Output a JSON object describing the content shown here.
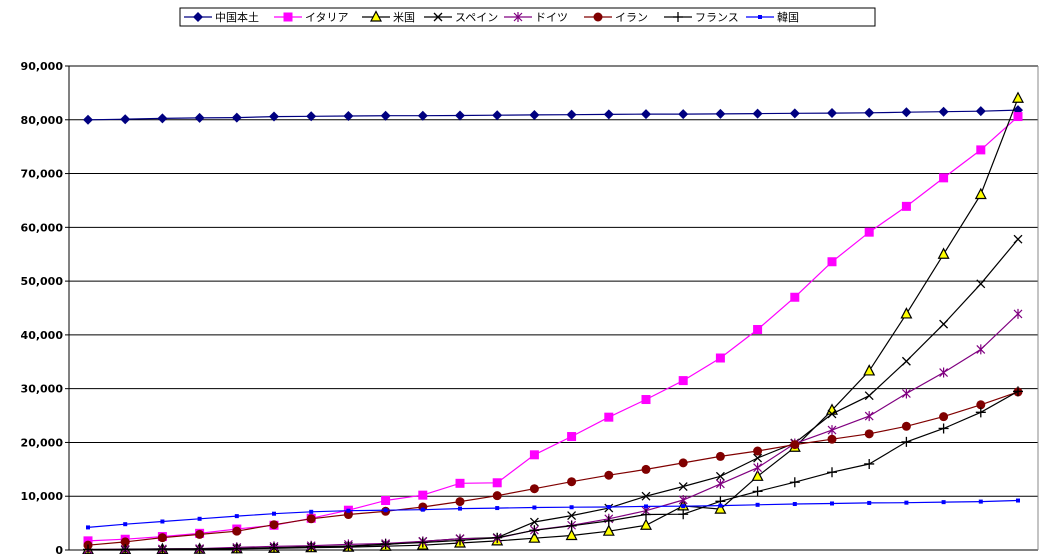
{
  "chart_data": {
    "type": "line",
    "ylim": [
      0,
      90000
    ],
    "yticks": [
      0,
      10000,
      20000,
      30000,
      40000,
      50000,
      60000,
      70000,
      80000,
      90000
    ],
    "ytick_labels": [
      "0",
      "10,000",
      "20,000",
      "30,000",
      "40,000",
      "50,000",
      "60,000",
      "70,000",
      "80,000",
      "90,000"
    ],
    "grid": true,
    "legend_position": "top",
    "series": [
      {
        "name": "中国本土",
        "color": "#000080",
        "marker": "diamond",
        "values": [
          80000,
          80100,
          80250,
          80350,
          80400,
          80600,
          80650,
          80700,
          80750,
          80750,
          80800,
          80850,
          80900,
          80950,
          81000,
          81050,
          81050,
          81100,
          81150,
          81200,
          81250,
          81300,
          81400,
          81500,
          81600,
          81800
        ]
      },
      {
        "name": "イタリア",
        "color": "#ff00ff",
        "marker": "square",
        "values": [
          1700,
          2000,
          2500,
          3100,
          3900,
          4600,
          5900,
          7400,
          9200,
          10200,
          12400,
          12500,
          17700,
          21100,
          24700,
          27980,
          31500,
          35700,
          41000,
          47000,
          53600,
          59100,
          63900,
          69200,
          74400,
          80600
        ]
      },
      {
        "name": "米国",
        "color": "#000000",
        "marker": "triangle",
        "values": [
          60,
          100,
          120,
          150,
          220,
          320,
          430,
          540,
          700,
          900,
          1300,
          1700,
          2200,
          2700,
          3500,
          4600,
          8200,
          7600,
          13700,
          19100,
          26000,
          33300,
          43900,
          55000,
          66100,
          84000
        ]
      },
      {
        "name": "スペイン",
        "color": "#000000",
        "marker": "x",
        "values": [
          0,
          0,
          50,
          100,
          250,
          400,
          500,
          680,
          1000,
          1600,
          2100,
          2300,
          5200,
          6400,
          7800,
          10000,
          11800,
          13700,
          17100,
          19900,
          25300,
          28700,
          35100,
          42000,
          49500,
          57800
        ]
      },
      {
        "name": "ドイツ",
        "color": "#800080",
        "marker": "asterisk",
        "values": [
          100,
          150,
          200,
          260,
          480,
          670,
          800,
          1040,
          1200,
          1600,
          2100,
          2200,
          3700,
          4600,
          5800,
          7300,
          9300,
          12300,
          15300,
          19800,
          22300,
          24900,
          29100,
          33000,
          37300,
          43900
        ]
      },
      {
        "name": "イラン",
        "color": "#800000",
        "marker": "circle",
        "values": [
          900,
          1500,
          2300,
          2900,
          3500,
          4700,
          5800,
          6600,
          7200,
          8000,
          9000,
          10100,
          11400,
          12700,
          13900,
          14990,
          16200,
          17400,
          18400,
          19600,
          20600,
          21600,
          23000,
          24800,
          27000,
          29400
        ]
      },
      {
        "name": "フランス",
        "color": "#000000",
        "marker": "plus",
        "values": [
          100,
          130,
          180,
          200,
          280,
          420,
          620,
          720,
          1100,
          1400,
          1780,
          2280,
          3660,
          4500,
          5420,
          6600,
          6650,
          9050,
          10900,
          12600,
          14460,
          16000,
          20100,
          22600,
          25600,
          29500
        ]
      },
      {
        "name": "韓国",
        "color": "#0000ff",
        "marker": "smallsquare",
        "values": [
          4200,
          4800,
          5300,
          5800,
          6300,
          6750,
          7100,
          7300,
          7400,
          7500,
          7700,
          7800,
          7900,
          7950,
          8000,
          8100,
          8150,
          8250,
          8400,
          8550,
          8650,
          8750,
          8800,
          8900,
          9000,
          9200
        ]
      }
    ]
  }
}
